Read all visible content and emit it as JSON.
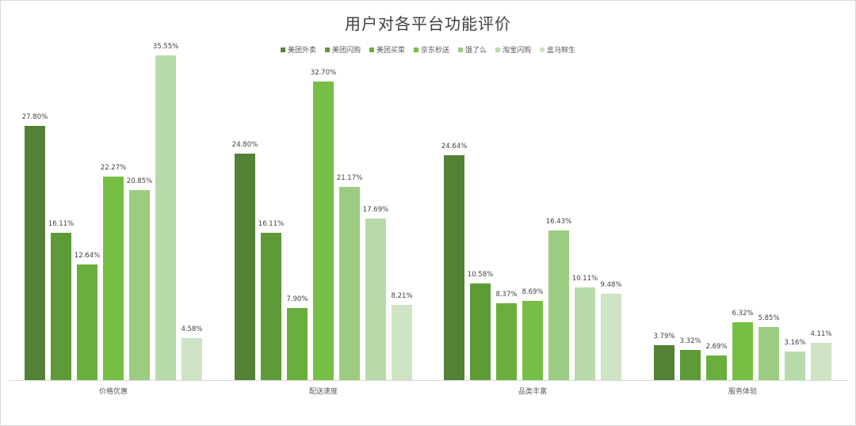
{
  "chart_data": {
    "type": "bar",
    "title": "用户对各平台功能评价",
    "xlabel": "",
    "ylabel": "",
    "legend_position": "top",
    "grid": false,
    "ylim": [
      0,
      36
    ],
    "categories": [
      "价格优惠",
      "配送速度",
      "品类丰富",
      "服务体验"
    ],
    "series": [
      {
        "name": "美团外卖",
        "color": "#538135",
        "values": [
          27.8,
          24.8,
          24.64,
          3.79
        ],
        "labels": [
          "27.80%",
          "24.80%",
          "24.64%",
          "3.79%"
        ]
      },
      {
        "name": "美团闪购",
        "color": "#5E9A38",
        "values": [
          16.11,
          16.11,
          10.58,
          3.32
        ],
        "labels": [
          "16.11%",
          "16.11%",
          "10.58%",
          "3.32%"
        ]
      },
      {
        "name": "美团买菜",
        "color": "#6AAF3D",
        "values": [
          12.64,
          7.9,
          8.37,
          2.69
        ],
        "labels": [
          "12.64%",
          "7.90%",
          "8.37%",
          "2.69%"
        ]
      },
      {
        "name": "京东秒送",
        "color": "#77BE45",
        "values": [
          22.27,
          32.7,
          8.69,
          6.32
        ],
        "labels": [
          "22.27%",
          "32.70%",
          "8.69%",
          "6.32%"
        ]
      },
      {
        "name": "饿了么",
        "color": "#9CCC82",
        "values": [
          20.85,
          21.17,
          16.43,
          5.85
        ],
        "labels": [
          "20.85%",
          "21.17%",
          "16.43%",
          "5.85%"
        ]
      },
      {
        "name": "淘宝闪购",
        "color": "#B8DAAA",
        "values": [
          35.55,
          17.69,
          10.11,
          3.16
        ],
        "labels": [
          "35.55%",
          "17.69%",
          "10.11%",
          "3.16%"
        ]
      },
      {
        "name": "盒马鲜生",
        "color": "#CEE4C4",
        "values": [
          4.58,
          8.21,
          9.48,
          4.11
        ],
        "labels": [
          "4.58%",
          "8.21%",
          "9.48%",
          "4.11%"
        ]
      }
    ]
  }
}
